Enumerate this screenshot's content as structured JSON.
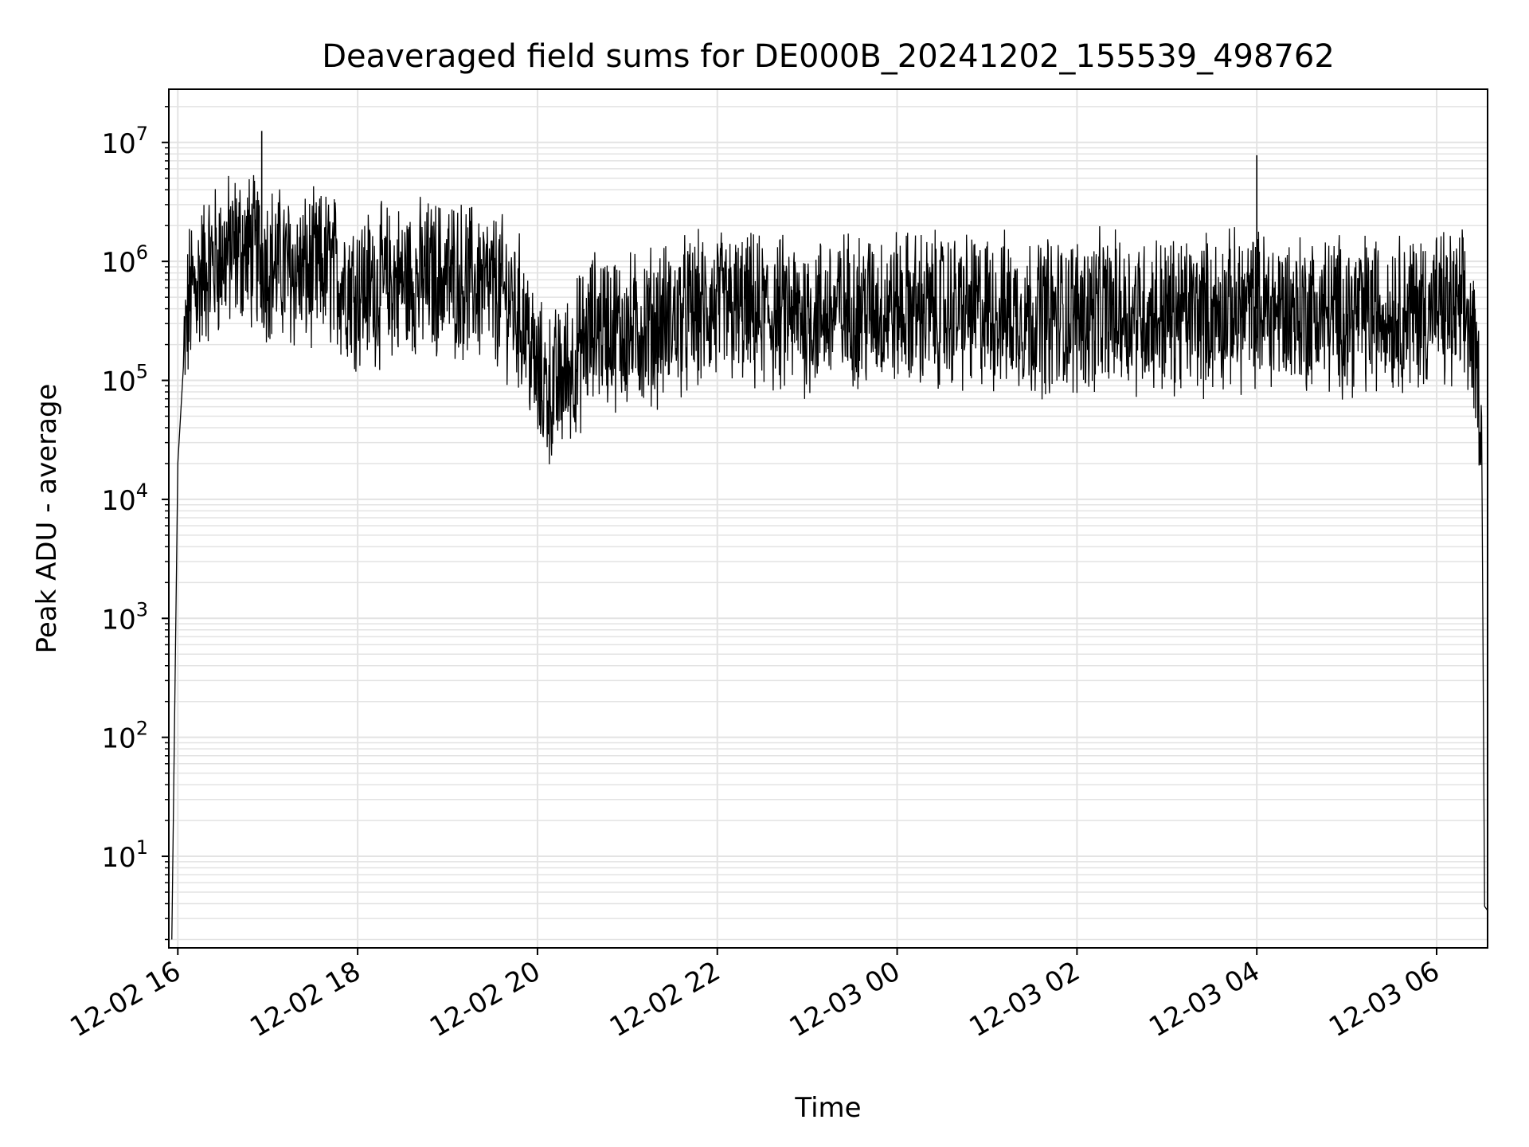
{
  "chart_data": {
    "type": "line",
    "title": "Deaveraged field sums for DE000B_20241202_155539_498762",
    "xlabel": "Time",
    "ylabel": "Peak ADU - average",
    "yscale": "log",
    "xlim": [
      "2024-12-02 15:54",
      "2024-12-03 06:34"
    ],
    "ylim": [
      1.7,
      28000000
    ],
    "x_ticks": [
      "12-02 16",
      "12-02 18",
      "12-02 20",
      "12-02 22",
      "12-03 00",
      "12-03 02",
      "12-03 04",
      "12-03 06"
    ],
    "y_ticks": [
      {
        "base": "10",
        "exp": "1"
      },
      {
        "base": "10",
        "exp": "2"
      },
      {
        "base": "10",
        "exp": "3"
      },
      {
        "base": "10",
        "exp": "4"
      },
      {
        "base": "10",
        "exp": "5"
      },
      {
        "base": "10",
        "exp": "6"
      },
      {
        "base": "10",
        "exp": "7"
      }
    ],
    "grid": true,
    "line_color": "#000000",
    "series": [
      {
        "x": [
          "2024-12-02 15:56",
          "2024-12-02 16:00",
          "2024-12-02 16:04",
          "2024-12-02 16:08",
          "2024-12-02 16:14",
          "2024-12-02 16:20",
          "2024-12-02 16:30",
          "2024-12-02 16:40",
          "2024-12-02 16:50",
          "2024-12-02 17:00",
          "2024-12-02 17:10",
          "2024-12-02 17:20",
          "2024-12-02 17:30",
          "2024-12-02 17:40",
          "2024-12-02 17:50",
          "2024-12-02 18:00",
          "2024-12-02 18:20",
          "2024-12-02 18:40",
          "2024-12-02 19:00",
          "2024-12-02 19:20",
          "2024-12-02 19:40",
          "2024-12-02 19:52",
          "2024-12-02 20:00",
          "2024-12-02 20:10",
          "2024-12-02 20:20",
          "2024-12-02 20:40",
          "2024-12-02 21:00",
          "2024-12-02 21:20",
          "2024-12-02 21:40",
          "2024-12-02 22:00",
          "2024-12-02 22:30",
          "2024-12-02 23:00",
          "2024-12-02 23:30",
          "2024-12-03 00:00",
          "2024-12-03 00:30",
          "2024-12-03 01:00",
          "2024-12-03 01:30",
          "2024-12-03 02:00",
          "2024-12-03 02:30",
          "2024-12-03 03:00",
          "2024-12-03 03:30",
          "2024-12-03 04:00",
          "2024-12-03 04:30",
          "2024-12-03 05:00",
          "2024-12-03 05:30",
          "2024-12-03 06:00",
          "2024-12-03 06:20",
          "2024-12-03 06:26",
          "2024-12-03 06:30",
          "2024-12-03 06:32",
          "2024-12-03 06:34"
        ],
        "y": [
          2,
          20000,
          150000,
          500000,
          700000,
          900000,
          1100000,
          1300000,
          1200000,
          1000000,
          900000,
          800000,
          800000,
          900000,
          700000,
          600000,
          650000,
          700000,
          750000,
          650000,
          500000,
          300000,
          100000,
          80000,
          120000,
          300000,
          250000,
          300000,
          350000,
          400000,
          350000,
          350000,
          400000,
          400000,
          380000,
          380000,
          350000,
          360000,
          380000,
          360000,
          370000,
          400000,
          380000,
          360000,
          380000,
          400000,
          350000,
          150000,
          50000,
          3.8,
          3.5
        ]
      }
    ],
    "annotations": [
      {
        "x": "2024-12-02 16:56",
        "y": 12500000,
        "label": ""
      },
      {
        "x": "2024-12-03 04:00",
        "y": 7800000,
        "label": ""
      }
    ]
  }
}
